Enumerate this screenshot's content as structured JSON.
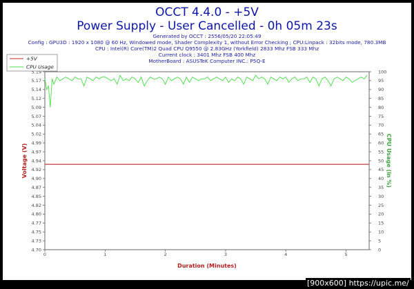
{
  "header": {
    "title": "OCCT 4.4.0 - +5V",
    "subtitle": "Power Supply - User Cancelled - 0h 05m 23s",
    "info_lines": [
      "Generated by OCCT : 2556/05/20 22:05:49",
      "Config : GPU3D : 1920 x 1080 @ 60 Hz, Windowed mode, Shader Complexity 1, without Error Checking ; CPU:Linpack : 32bits mode, 780.3MB",
      "CPU : Intel(R) Core(TM)2 Quad CPU Q9550 @ 2.83GHz (Yorkfield) 2833 Mhz FSB 333 Mhz",
      "Current clock : 3401 Mhz FSB 400 Mhz",
      "MotherBoard : ASUSTeK Computer INC.: P5Q-E"
    ]
  },
  "watermark": "[900x600] https://upic.me/",
  "colors": {
    "voltage": "#c0282a",
    "cpu": "#44dd44",
    "title": "#0b16a8"
  },
  "chart_data": {
    "type": "line",
    "xlabel": "Duration (Minutes)",
    "ylabel": "Voltage (V)",
    "y2label": "CPU Usage (in %)",
    "xlim": [
      0,
      5.383
    ],
    "ylim": [
      4.7,
      5.2
    ],
    "y2lim": [
      0,
      100
    ],
    "x_ticks": [
      "0",
      "1",
      "2",
      "3",
      "4",
      "5"
    ],
    "y_ticks": [
      "4.70",
      "4.73",
      "4.75",
      "4.77",
      "4.80",
      "4.82",
      "4.85",
      "4.87",
      "4.90",
      "4.92",
      "4.94",
      "4.97",
      "4.99",
      "5.02",
      "5.04",
      "5.07",
      "5.09",
      "5.12",
      "5.14",
      "5.17",
      "5.19"
    ],
    "y2_ticks": [
      "0",
      "5",
      "10",
      "15",
      "20",
      "25",
      "30",
      "35",
      "40",
      "45",
      "50",
      "55",
      "60",
      "65",
      "70",
      "75",
      "80",
      "85",
      "90",
      "95",
      "100"
    ],
    "grid": false,
    "legend_position": "top-left",
    "series": [
      {
        "name": "+5V",
        "axis": "left",
        "x": [
          0,
          5.383
        ],
        "values": [
          4.94,
          4.94
        ]
      },
      {
        "name": "CPU Usage",
        "axis": "right",
        "x": [
          0,
          0.03,
          0.06,
          0.09,
          0.12,
          0.15,
          0.2,
          0.25,
          0.3,
          0.35,
          0.4,
          0.45,
          0.5,
          0.55,
          0.6,
          0.65,
          0.7,
          0.75,
          0.8,
          0.85,
          0.9,
          0.95,
          1.0,
          1.05,
          1.1,
          1.15,
          1.2,
          1.25,
          1.3,
          1.35,
          1.4,
          1.45,
          1.5,
          1.55,
          1.6,
          1.65,
          1.7,
          1.75,
          1.8,
          1.85,
          1.9,
          1.95,
          2.0,
          2.05,
          2.1,
          2.15,
          2.2,
          2.25,
          2.3,
          2.35,
          2.4,
          2.45,
          2.5,
          2.55,
          2.6,
          2.65,
          2.7,
          2.75,
          2.8,
          2.85,
          2.9,
          2.95,
          3.0,
          3.05,
          3.1,
          3.15,
          3.2,
          3.25,
          3.3,
          3.35,
          3.4,
          3.45,
          3.5,
          3.55,
          3.6,
          3.65,
          3.7,
          3.75,
          3.8,
          3.85,
          3.9,
          3.95,
          4.0,
          4.05,
          4.1,
          4.15,
          4.2,
          4.25,
          4.3,
          4.35,
          4.4,
          4.45,
          4.5,
          4.55,
          4.6,
          4.65,
          4.7,
          4.75,
          4.8,
          4.85,
          4.9,
          4.95,
          5.0,
          5.05,
          5.1,
          5.15,
          5.2,
          5.25,
          5.3,
          5.35
        ],
        "values": [
          96,
          90,
          92,
          80,
          96,
          93,
          97,
          95,
          96,
          97,
          96,
          95,
          97,
          96,
          96,
          92,
          97,
          96,
          95,
          97,
          96,
          97,
          97,
          96,
          95,
          96,
          93,
          98,
          95,
          96,
          95,
          97,
          96,
          94,
          97,
          92,
          95,
          97,
          96,
          96,
          97,
          96,
          93,
          97,
          95,
          96,
          97,
          96,
          93,
          97,
          94,
          97,
          96,
          95,
          96,
          96,
          97,
          95,
          96,
          97,
          96,
          95,
          97,
          94,
          96,
          95,
          97,
          96,
          93,
          97,
          96,
          95,
          98,
          96,
          97,
          96,
          93,
          97,
          96,
          95,
          97,
          96,
          97,
          94,
          96,
          97,
          95,
          96,
          96,
          97,
          94,
          97,
          96,
          92,
          96,
          97,
          95,
          92,
          96,
          97,
          96,
          95,
          97,
          96,
          94,
          95,
          96,
          97,
          96,
          98
        ]
      }
    ]
  }
}
